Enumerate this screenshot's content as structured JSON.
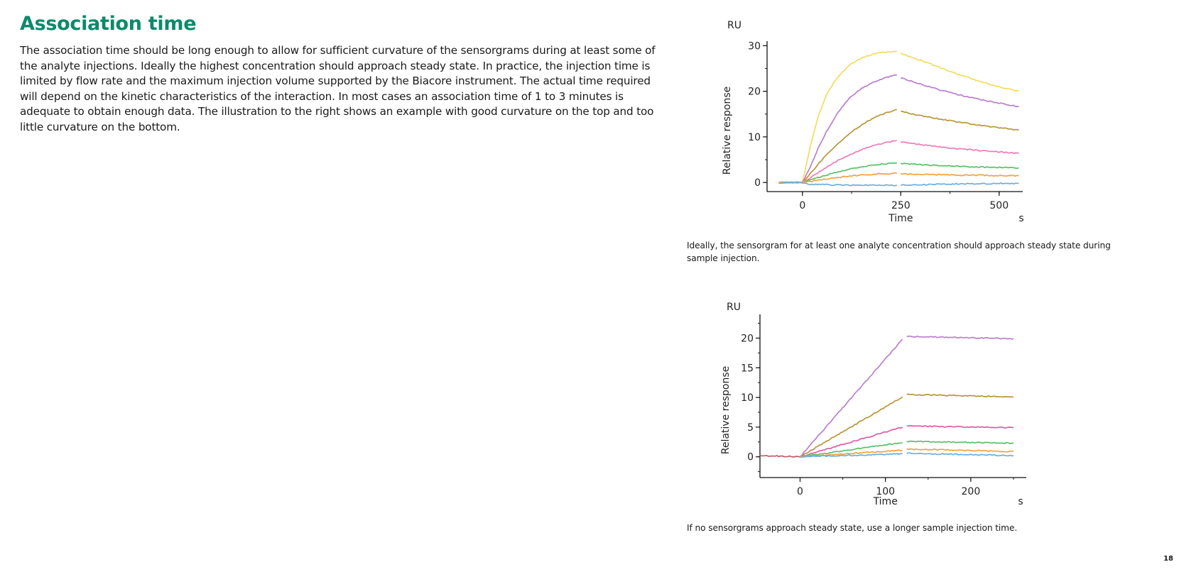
{
  "page": {
    "title": "Association time",
    "paragraph": "The association time should be long enough to allow for sufficient curvature of the sensorgrams during at least some of the analyte injections. Ideally the highest concentration should approach steady state. In practice, the injection time is limited by flow rate and the maximum injection volume supported by the Biacore instrument. The actual time required will depend on the kinetic characteristics of the interaction. In most cases an association time of 1 to 3 minutes is adequate to obtain enough data. The illustration to the right shows an example with good curvature on the top and too little curvature on the bottom.",
    "caption_top": "Ideally, the sensorgram for at least one analyte concentration should approach steady state during sample injection.",
    "caption_bottom": "If no sensorgrams approach steady state, use a longer sample injection time.",
    "page_number": "18",
    "accent_color": "#0b8a6c"
  },
  "chart_data": [
    {
      "type": "line",
      "unit_label": "RU",
      "ylabel": "Relative response",
      "xlabel": "Time",
      "xunit": "s",
      "xlim": [
        -90,
        560
      ],
      "ylim": [
        -2,
        31
      ],
      "xticks": [
        0,
        250,
        500
      ],
      "yticks": [
        0,
        10,
        20,
        30
      ],
      "grid": false,
      "injection_end": 240,
      "series": [
        {
          "color": "#f2dc5d",
          "values": [
            [
              -60,
              0
            ],
            [
              0,
              0
            ],
            [
              20,
              8
            ],
            [
              40,
              14.5
            ],
            [
              60,
              19
            ],
            [
              80,
              22
            ],
            [
              100,
              24.2
            ],
            [
              120,
              25.8
            ],
            [
              150,
              27.3
            ],
            [
              180,
              28.2
            ],
            [
              210,
              28.6
            ],
            [
              240,
              28.8
            ],
            [
              250,
              28.3
            ],
            [
              300,
              26.8
            ],
            [
              350,
              25.2
            ],
            [
              400,
              23.6
            ],
            [
              450,
              22.2
            ],
            [
              500,
              21
            ],
            [
              550,
              20
            ]
          ]
        },
        {
          "color": "#b97fd0",
          "values": [
            [
              -60,
              0
            ],
            [
              0,
              0
            ],
            [
              20,
              3.5
            ],
            [
              40,
              7.5
            ],
            [
              60,
              11
            ],
            [
              80,
              14
            ],
            [
              100,
              16.5
            ],
            [
              120,
              18.5
            ],
            [
              150,
              20.6
            ],
            [
              180,
              22
            ],
            [
              210,
              23
            ],
            [
              240,
              23.6
            ],
            [
              250,
              23
            ],
            [
              300,
              21.6
            ],
            [
              350,
              20.3
            ],
            [
              400,
              19.2
            ],
            [
              450,
              18.2
            ],
            [
              500,
              17.4
            ],
            [
              550,
              16.6
            ]
          ]
        },
        {
          "color": "#b8963a",
          "values": [
            [
              -60,
              0
            ],
            [
              0,
              0
            ],
            [
              30,
              3
            ],
            [
              60,
              6
            ],
            [
              90,
              8.6
            ],
            [
              120,
              10.8
            ],
            [
              150,
              12.6
            ],
            [
              180,
              14.1
            ],
            [
              210,
              15.2
            ],
            [
              240,
              16
            ],
            [
              250,
              15.6
            ],
            [
              300,
              14.7
            ],
            [
              350,
              13.9
            ],
            [
              400,
              13.2
            ],
            [
              450,
              12.6
            ],
            [
              500,
              12
            ],
            [
              550,
              11.5
            ]
          ]
        },
        {
          "color": "#f07ab8",
          "values": [
            [
              -60,
              0
            ],
            [
              0,
              0
            ],
            [
              30,
              1.6
            ],
            [
              60,
              3.3
            ],
            [
              90,
              4.8
            ],
            [
              120,
              6.1
            ],
            [
              150,
              7.2
            ],
            [
              180,
              8.1
            ],
            [
              210,
              8.7
            ],
            [
              240,
              9.2
            ],
            [
              250,
              8.9
            ],
            [
              300,
              8.3
            ],
            [
              350,
              7.8
            ],
            [
              400,
              7.4
            ],
            [
              450,
              7
            ],
            [
              500,
              6.7
            ],
            [
              550,
              6.4
            ]
          ]
        },
        {
          "color": "#5bbf6a",
          "values": [
            [
              -60,
              0
            ],
            [
              0,
              0
            ],
            [
              30,
              0.8
            ],
            [
              60,
              1.6
            ],
            [
              90,
              2.3
            ],
            [
              120,
              2.9
            ],
            [
              150,
              3.4
            ],
            [
              180,
              3.8
            ],
            [
              210,
              4.1
            ],
            [
              240,
              4.3
            ],
            [
              250,
              4.2
            ],
            [
              300,
              3.9
            ],
            [
              350,
              3.7
            ],
            [
              400,
              3.5
            ],
            [
              450,
              3.4
            ],
            [
              500,
              3.3
            ],
            [
              550,
              3.2
            ]
          ]
        },
        {
          "color": "#f4a23c",
          "values": [
            [
              -60,
              0
            ],
            [
              0,
              0
            ],
            [
              40,
              0.5
            ],
            [
              80,
              1
            ],
            [
              120,
              1.4
            ],
            [
              160,
              1.7
            ],
            [
              200,
              1.9
            ],
            [
              240,
              2
            ],
            [
              250,
              1.9
            ],
            [
              300,
              1.8
            ],
            [
              350,
              1.7
            ],
            [
              400,
              1.6
            ],
            [
              450,
              1.6
            ],
            [
              500,
              1.5
            ],
            [
              550,
              1.5
            ]
          ]
        },
        {
          "color": "#6aaee0",
          "values": [
            [
              -60,
              -0.1
            ],
            [
              0,
              0
            ],
            [
              20,
              -0.4
            ],
            [
              60,
              -0.5
            ],
            [
              120,
              -0.6
            ],
            [
              180,
              -0.6
            ],
            [
              240,
              -0.6
            ],
            [
              250,
              -0.6
            ],
            [
              300,
              -0.5
            ],
            [
              350,
              -0.4
            ],
            [
              400,
              -0.3
            ],
            [
              450,
              -0.3
            ],
            [
              500,
              -0.2
            ],
            [
              550,
              -0.2
            ]
          ]
        }
      ]
    },
    {
      "type": "line",
      "unit_label": "RU",
      "ylabel": "Relative response",
      "xlabel": "Time",
      "xunit": "s",
      "xlim": [
        -47,
        265
      ],
      "ylim": [
        -3.5,
        24
      ],
      "xticks": [
        0,
        100,
        200
      ],
      "yticks": [
        0,
        5,
        10,
        15,
        20
      ],
      "grid": false,
      "injection_end": 120,
      "series": [
        {
          "color": "#c05a6a",
          "values": [
            [
              -47,
              0.2
            ],
            [
              -25,
              0.1
            ],
            [
              0,
              0
            ]
          ]
        },
        {
          "color": "#b97fd0",
          "values": [
            [
              0,
              0
            ],
            [
              120,
              19.8
            ],
            [
              125,
              20.3
            ],
            [
              250,
              19.9
            ]
          ]
        },
        {
          "color": "#b8963a",
          "values": [
            [
              0,
              0
            ],
            [
              120,
              10.1
            ],
            [
              125,
              10.5
            ],
            [
              250,
              10.1
            ]
          ]
        },
        {
          "color": "#e25aa4",
          "values": [
            [
              0,
              0
            ],
            [
              120,
              5
            ],
            [
              125,
              5.2
            ],
            [
              250,
              4.9
            ]
          ]
        },
        {
          "color": "#5bbf6a",
          "values": [
            [
              0,
              0
            ],
            [
              120,
              2.4
            ],
            [
              125,
              2.6
            ],
            [
              250,
              2.3
            ]
          ]
        },
        {
          "color": "#f4a23c",
          "values": [
            [
              0,
              0
            ],
            [
              120,
              1.1
            ],
            [
              125,
              1.3
            ],
            [
              250,
              0.9
            ]
          ]
        },
        {
          "color": "#6aaee0",
          "values": [
            [
              0,
              0
            ],
            [
              120,
              0.5
            ],
            [
              125,
              0.6
            ],
            [
              250,
              0.2
            ]
          ]
        }
      ]
    }
  ]
}
